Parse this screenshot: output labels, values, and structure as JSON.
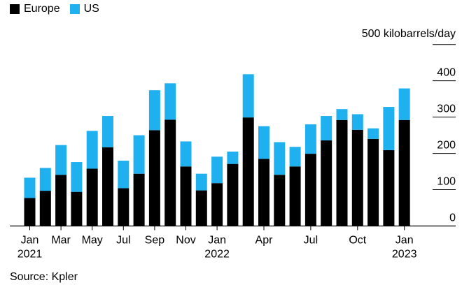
{
  "chart_data": {
    "type": "bar",
    "stacked": true,
    "unit_label": "500 kilobarrels/day",
    "ylim": [
      0,
      500
    ],
    "yticks": [
      0,
      100,
      200,
      300,
      400
    ],
    "series": [
      {
        "name": "Europe",
        "color": "#000000",
        "values": [
          77,
          97,
          141,
          94,
          158,
          217,
          104,
          144,
          264,
          293,
          164,
          98,
          118,
          171,
          299,
          185,
          141,
          164,
          199,
          236,
          292,
          265,
          240,
          209,
          292
        ]
      },
      {
        "name": "US",
        "color": "#1fb0f0",
        "values": [
          56,
          63,
          82,
          82,
          104,
          86,
          76,
          106,
          110,
          100,
          69,
          46,
          73,
          34,
          119,
          90,
          90,
          54,
          81,
          67,
          30,
          43,
          29,
          119,
          87
        ]
      }
    ],
    "xtick_labels": [
      {
        "index": 0,
        "label": "Jan",
        "sublabel": "2021"
      },
      {
        "index": 2,
        "label": "Mar",
        "sublabel": ""
      },
      {
        "index": 4,
        "label": "May",
        "sublabel": ""
      },
      {
        "index": 6,
        "label": "Jul",
        "sublabel": ""
      },
      {
        "index": 8,
        "label": "Sep",
        "sublabel": ""
      },
      {
        "index": 10,
        "label": "Nov",
        "sublabel": ""
      },
      {
        "index": 12,
        "label": "Jan",
        "sublabel": "2022"
      },
      {
        "index": 15,
        "label": "Apr",
        "sublabel": ""
      },
      {
        "index": 18,
        "label": "Jul",
        "sublabel": ""
      },
      {
        "index": 21,
        "label": "Oct",
        "sublabel": ""
      },
      {
        "index": 24,
        "label": "Jan",
        "sublabel": "2023"
      }
    ]
  },
  "source": "Source: Kpler"
}
